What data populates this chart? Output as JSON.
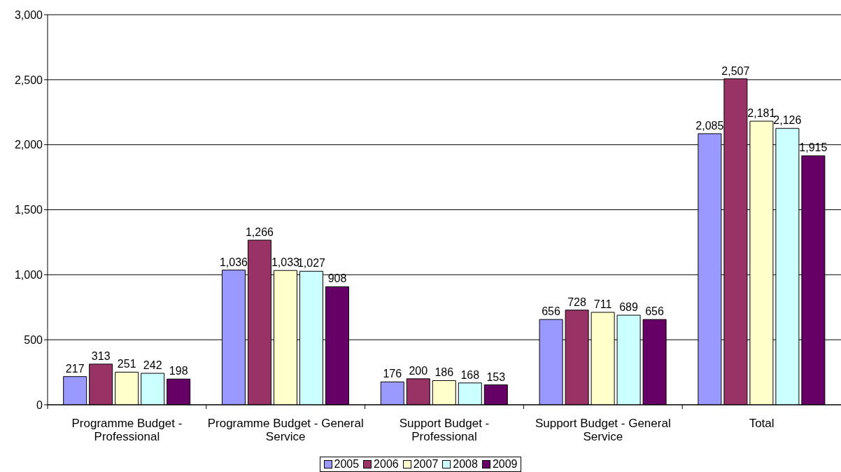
{
  "chart_data": {
    "type": "bar",
    "categories": [
      "Programme Budget - Professional",
      "Programme Budget - General Service",
      "Support Budget - Professional",
      "Support Budget - General Service",
      "Total"
    ],
    "series": [
      {
        "name": "2005",
        "color": "#9999ff",
        "values": [
          217,
          1036,
          176,
          656,
          2085
        ],
        "value_labels": [
          "217",
          "1,036",
          "176",
          "656",
          "2,085"
        ]
      },
      {
        "name": "2006",
        "color": "#993366",
        "values": [
          313,
          1266,
          200,
          728,
          2507
        ],
        "value_labels": [
          "313",
          "1,266",
          "200",
          "728",
          "2,507"
        ]
      },
      {
        "name": "2007",
        "color": "#ffffcc",
        "values": [
          251,
          1033,
          186,
          711,
          2181
        ],
        "value_labels": [
          "251",
          "1,033",
          "186",
          "711",
          "2,181"
        ]
      },
      {
        "name": "2008",
        "color": "#ccffff",
        "values": [
          242,
          1027,
          168,
          689,
          2126
        ],
        "value_labels": [
          "242",
          "1,027",
          "168",
          "689",
          "2,126"
        ]
      },
      {
        "name": "2009",
        "color": "#660066",
        "values": [
          198,
          908,
          153,
          656,
          1915
        ],
        "value_labels": [
          "198",
          "908",
          "153",
          "656",
          "1,915"
        ]
      }
    ],
    "ylim": [
      0,
      3000
    ],
    "yticks": [
      0,
      {
        "value": 500,
        "label": "500"
      },
      {
        "value": 1000,
        "label": "1,000"
      },
      {
        "value": 1500,
        "label": "1,500"
      },
      {
        "value": 2000,
        "label": "2,000"
      },
      {
        "value": 2500,
        "label": "2,500"
      },
      {
        "value": 3000,
        "label": "3,000"
      }
    ],
    "grid": "y",
    "legend": "bottom"
  }
}
